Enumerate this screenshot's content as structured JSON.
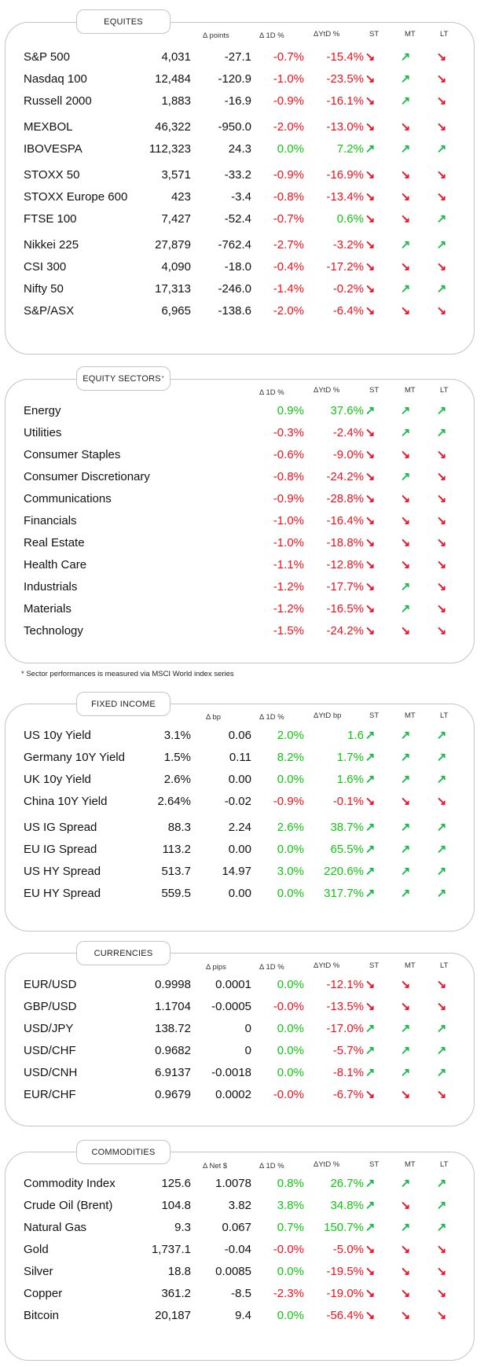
{
  "arrows": {
    "up": "↗",
    "down": "↘"
  },
  "colors": {
    "up": "#1bb84a",
    "down": "#e8142a"
  },
  "equities": {
    "title": "EQUITES",
    "headers": {
      "c1": "Δ points",
      "c2": "Δ 1D %",
      "c3": "ΔYtD %",
      "st": "ST",
      "mt": "MT",
      "lt": "LT"
    },
    "groups": [
      [
        {
          "name": "S&P 500",
          "level": "4,031",
          "change": "-27.1",
          "d1": "-0.7%",
          "ytd": "-15.4%",
          "st": "down",
          "mt": "up",
          "lt": "down"
        },
        {
          "name": "Nasdaq 100",
          "level": "12,484",
          "change": "-120.9",
          "d1": "-1.0%",
          "ytd": "-23.5%",
          "st": "down",
          "mt": "up",
          "lt": "down"
        },
        {
          "name": "Russell 2000",
          "level": "1,883",
          "change": "-16.9",
          "d1": "-0.9%",
          "ytd": "-16.1%",
          "st": "down",
          "mt": "up",
          "lt": "down"
        }
      ],
      [
        {
          "name": "MEXBOL",
          "level": "46,322",
          "change": "-950.0",
          "d1": "-2.0%",
          "ytd": "-13.0%",
          "st": "down",
          "mt": "down",
          "lt": "down"
        },
        {
          "name": "IBOVESPA",
          "level": "112,323",
          "change": "24.3",
          "d1": "0.0%",
          "ytd": "7.2%",
          "st": "up",
          "mt": "up",
          "lt": "up"
        }
      ],
      [
        {
          "name": "STOXX 50",
          "level": "3,571",
          "change": "-33.2",
          "d1": "-0.9%",
          "ytd": "-16.9%",
          "st": "down",
          "mt": "down",
          "lt": "down"
        },
        {
          "name": "STOXX Europe 600",
          "level": "423",
          "change": "-3.4",
          "d1": "-0.8%",
          "ytd": "-13.4%",
          "st": "down",
          "mt": "down",
          "lt": "down"
        },
        {
          "name": "FTSE 100",
          "level": "7,427",
          "change": "-52.4",
          "d1": "-0.7%",
          "ytd": "0.6%",
          "st": "down",
          "mt": "down",
          "lt": "up"
        }
      ],
      [
        {
          "name": "Nikkei 225",
          "level": "27,879",
          "change": "-762.4",
          "d1": "-2.7%",
          "ytd": "-3.2%",
          "st": "down",
          "mt": "up",
          "lt": "up"
        },
        {
          "name": "CSI 300",
          "level": "4,090",
          "change": "-18.0",
          "d1": "-0.4%",
          "ytd": "-17.2%",
          "st": "down",
          "mt": "down",
          "lt": "down"
        },
        {
          "name": "Nifty  50",
          "level": "17,313",
          "change": "-246.0",
          "d1": "-1.4%",
          "ytd": "-0.2%",
          "st": "down",
          "mt": "up",
          "lt": "up"
        },
        {
          "name": "S&P/ASX",
          "level": "6,965",
          "change": "-138.6",
          "d1": "-2.0%",
          "ytd": "-6.4%",
          "st": "down",
          "mt": "down",
          "lt": "down"
        }
      ]
    ]
  },
  "sectors": {
    "title": "EQUITY SECTORS",
    "title_mark": "*",
    "headers": {
      "c2": "Δ 1D %",
      "c3": "ΔYtD %",
      "st": "ST",
      "mt": "MT",
      "lt": "LT"
    },
    "footnote": "* Sector performances is measured via MSCI World index series",
    "groups": [
      [
        {
          "name": "Energy",
          "d1": "0.9%",
          "ytd": "37.6%",
          "st": "up",
          "mt": "up",
          "lt": "up"
        },
        {
          "name": "Utilities",
          "d1": "-0.3%",
          "ytd": "-2.4%",
          "st": "down",
          "mt": "up",
          "lt": "up"
        },
        {
          "name": "Consumer Staples",
          "d1": "-0.6%",
          "ytd": "-9.0%",
          "st": "down",
          "mt": "down",
          "lt": "down"
        },
        {
          "name": "Consumer Discretionary",
          "d1": "-0.8%",
          "ytd": "-24.2%",
          "st": "down",
          "mt": "up",
          "lt": "down"
        },
        {
          "name": "Communications",
          "d1": "-0.9%",
          "ytd": "-28.8%",
          "st": "down",
          "mt": "down",
          "lt": "down"
        },
        {
          "name": "Financials",
          "d1": "-1.0%",
          "ytd": "-16.4%",
          "st": "down",
          "mt": "down",
          "lt": "down"
        },
        {
          "name": "Real Estate",
          "d1": "-1.0%",
          "ytd": "-18.8%",
          "st": "down",
          "mt": "down",
          "lt": "down"
        },
        {
          "name": "Health Care",
          "d1": "-1.1%",
          "ytd": "-12.8%",
          "st": "down",
          "mt": "down",
          "lt": "down"
        },
        {
          "name": "Industrials",
          "d1": "-1.2%",
          "ytd": "-17.7%",
          "st": "down",
          "mt": "up",
          "lt": "down"
        },
        {
          "name": "Materials",
          "d1": "-1.2%",
          "ytd": "-16.5%",
          "st": "down",
          "mt": "up",
          "lt": "down"
        },
        {
          "name": "Technology",
          "d1": "-1.5%",
          "ytd": "-24.2%",
          "st": "down",
          "mt": "down",
          "lt": "down"
        }
      ]
    ]
  },
  "fixed_income": {
    "title": "FIXED INCOME",
    "headers": {
      "c1": "Δ bp",
      "c2": "Δ 1D %",
      "c3": "ΔYtD bp",
      "st": "ST",
      "mt": "MT",
      "lt": "LT"
    },
    "groups": [
      [
        {
          "name": "US 10y Yield",
          "level": "3.1%",
          "change": "0.06",
          "d1": "2.0%",
          "ytd": "1.6",
          "st": "up",
          "mt": "up",
          "lt": "up"
        },
        {
          "name": "Germany 10Y Yield",
          "level": "1.5%",
          "change": "0.11",
          "d1": "8.2%",
          "ytd": "1.7%",
          "st": "up",
          "mt": "up",
          "lt": "up"
        },
        {
          "name": "UK 10y Yield",
          "level": "2.6%",
          "change": "0.00",
          "d1": "0.0%",
          "ytd": "1.6%",
          "st": "up",
          "mt": "up",
          "lt": "up"
        },
        {
          "name": "China 10Y Yield",
          "level": "2.64%",
          "change": "-0.02",
          "d1": "-0.9%",
          "ytd": "-0.1%",
          "st": "down",
          "mt": "down",
          "lt": "down"
        }
      ],
      [
        {
          "name": "US IG Spread",
          "level": "88.3",
          "change": "2.24",
          "d1": "2.6%",
          "ytd": "38.7%",
          "st": "up",
          "mt": "up",
          "lt": "up"
        },
        {
          "name": "EU IG Spread",
          "level": "113.2",
          "change": "0.00",
          "d1": "0.0%",
          "ytd": "65.5%",
          "st": "up",
          "mt": "up",
          "lt": "up"
        },
        {
          "name": "US HY Spread",
          "level": "513.7",
          "change": "14.97",
          "d1": "3.0%",
          "ytd": "220.6%",
          "st": "up",
          "mt": "up",
          "lt": "up"
        },
        {
          "name": "EU HY Spread",
          "level": "559.5",
          "change": "0.00",
          "d1": "0.0%",
          "ytd": "317.7%",
          "st": "up",
          "mt": "up",
          "lt": "up"
        }
      ]
    ]
  },
  "currencies": {
    "title": "CURRENCIES",
    "headers": {
      "c1": "Δ pips",
      "c2": "Δ 1D %",
      "c3": "ΔYtD %",
      "st": "ST",
      "mt": "MT",
      "lt": "LT"
    },
    "groups": [
      [
        {
          "name": "EUR/USD",
          "level": "0.9998",
          "change": "0.0001",
          "d1": "0.0%",
          "ytd": "-12.1%",
          "st": "down",
          "mt": "down",
          "lt": "down"
        },
        {
          "name": "GBP/USD",
          "level": "1.1704",
          "change": "-0.0005",
          "d1": "-0.0%",
          "ytd": "-13.5%",
          "st": "down",
          "mt": "down",
          "lt": "down"
        },
        {
          "name": "USD/JPY",
          "level": "138.72",
          "change": "0",
          "d1": "0.0%",
          "ytd": "-17.0%",
          "st": "up",
          "mt": "up",
          "lt": "up"
        },
        {
          "name": "USD/CHF",
          "level": "0.9682",
          "change": "0",
          "d1": "0.0%",
          "ytd": "-5.7%",
          "st": "up",
          "mt": "up",
          "lt": "up"
        },
        {
          "name": "USD/CNH",
          "level": "6.9137",
          "change": "-0.0018",
          "d1": "0.0%",
          "ytd": "-8.1%",
          "st": "up",
          "mt": "up",
          "lt": "up"
        },
        {
          "name": "EUR/CHF",
          "level": "0.9679",
          "change": "0.0002",
          "d1": "-0.0%",
          "ytd": "-6.7%",
          "st": "down",
          "mt": "down",
          "lt": "down"
        }
      ]
    ]
  },
  "commodities": {
    "title": "COMMODITIES",
    "headers": {
      "c1": "Δ Net $",
      "c2": "Δ 1D %",
      "c3": "ΔYtD %",
      "st": "ST",
      "mt": "MT",
      "lt": "LT"
    },
    "groups": [
      [
        {
          "name": "Commodity Index",
          "level": "125.6",
          "change": "1.0078",
          "d1": "0.8%",
          "ytd": "26.7%",
          "st": "up",
          "mt": "up",
          "lt": "up"
        },
        {
          "name": "Crude Oil (Brent)",
          "level": "104.8",
          "change": "3.82",
          "d1": "3.8%",
          "ytd": "34.8%",
          "st": "up",
          "mt": "down",
          "lt": "up"
        },
        {
          "name": "Natural Gas",
          "level": "9.3",
          "change": "0.067",
          "d1": "0.7%",
          "ytd": "150.7%",
          "st": "up",
          "mt": "up",
          "lt": "up"
        },
        {
          "name": "Gold",
          "level": "1,737.1",
          "change": "-0.04",
          "d1": "-0.0%",
          "ytd": "-5.0%",
          "st": "down",
          "mt": "down",
          "lt": "down"
        },
        {
          "name": "Silver",
          "level": "18.8",
          "change": "0.0085",
          "d1": "0.0%",
          "ytd": "-19.5%",
          "st": "down",
          "mt": "down",
          "lt": "down"
        },
        {
          "name": "Copper",
          "level": "361.2",
          "change": "-8.5",
          "d1": "-2.3%",
          "ytd": "-19.0%",
          "st": "down",
          "mt": "down",
          "lt": "down"
        },
        {
          "name": "Bitcoin",
          "level": "20,187",
          "change": "9.4",
          "d1": "0.0%",
          "ytd": "-56.4%",
          "st": "down",
          "mt": "down",
          "lt": "down"
        }
      ]
    ]
  }
}
